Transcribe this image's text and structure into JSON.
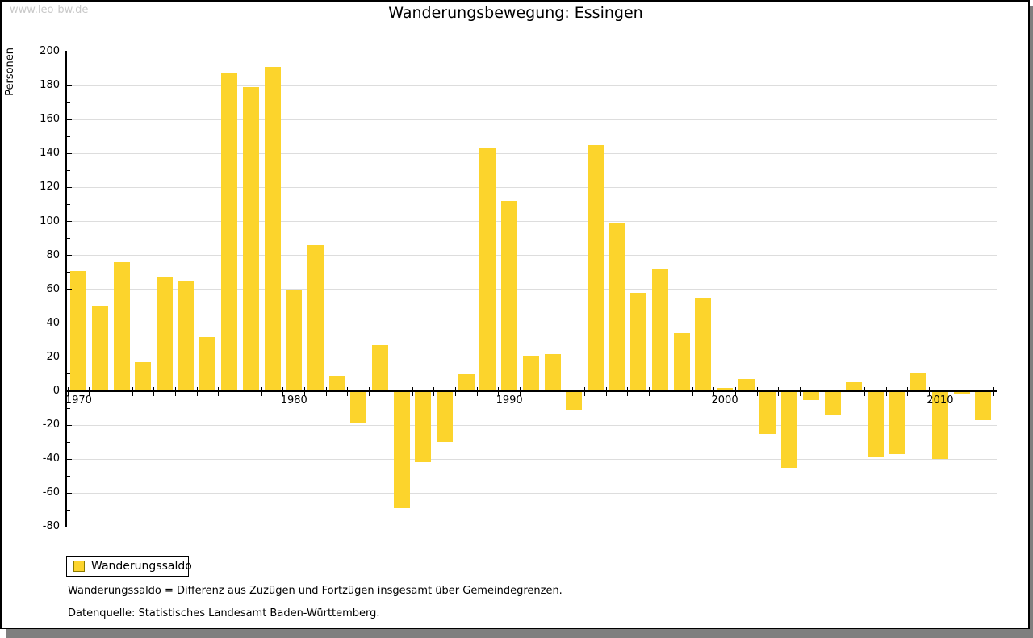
{
  "watermark": "www.leo-bw.de",
  "title": "Wanderungsbewegung: Essingen",
  "y_axis_label": "Personen",
  "legend": {
    "items": [
      {
        "label": "Wanderungssaldo",
        "color": "#fcd42c"
      }
    ]
  },
  "footnotes": [
    "Wanderungssaldo = Differenz aus Zuzügen und Fortzügen insgesamt über Gemeindegrenzen.",
    "Datenquelle: Statistisches Landesamt Baden-Württemberg."
  ],
  "chart_data": {
    "type": "bar",
    "title": "Wanderungsbewegung: Essingen",
    "xlabel": "",
    "ylabel": "Personen",
    "ylim": [
      -80,
      200
    ],
    "ytick_step": 20,
    "grid": true,
    "legend_position": "bottom-left",
    "bar_color": "#fcd42c",
    "series_name": "Wanderungssaldo",
    "categories": [
      1970,
      1971,
      1972,
      1973,
      1974,
      1975,
      1976,
      1977,
      1978,
      1979,
      1980,
      1981,
      1982,
      1983,
      1984,
      1985,
      1986,
      1987,
      1988,
      1989,
      1990,
      1991,
      1992,
      1993,
      1994,
      1995,
      1996,
      1997,
      1998,
      1999,
      2000,
      2001,
      2002,
      2003,
      2004,
      2005,
      2006,
      2007,
      2008,
      2009,
      2010,
      2011,
      2012
    ],
    "values": [
      71,
      50,
      76,
      17,
      67,
      65,
      32,
      187,
      179,
      191,
      60,
      86,
      9,
      -19,
      27,
      -69,
      -42,
      -30,
      10,
      143,
      112,
      21,
      22,
      -11,
      145,
      99,
      58,
      72,
      34,
      55,
      2,
      7,
      -25,
      -45,
      -5,
      -14,
      5,
      -39,
      -37,
      11,
      -40,
      -2,
      -17
    ],
    "x_tick_labels": [
      "1970",
      "1980",
      "1990",
      "2000",
      "2010"
    ]
  }
}
